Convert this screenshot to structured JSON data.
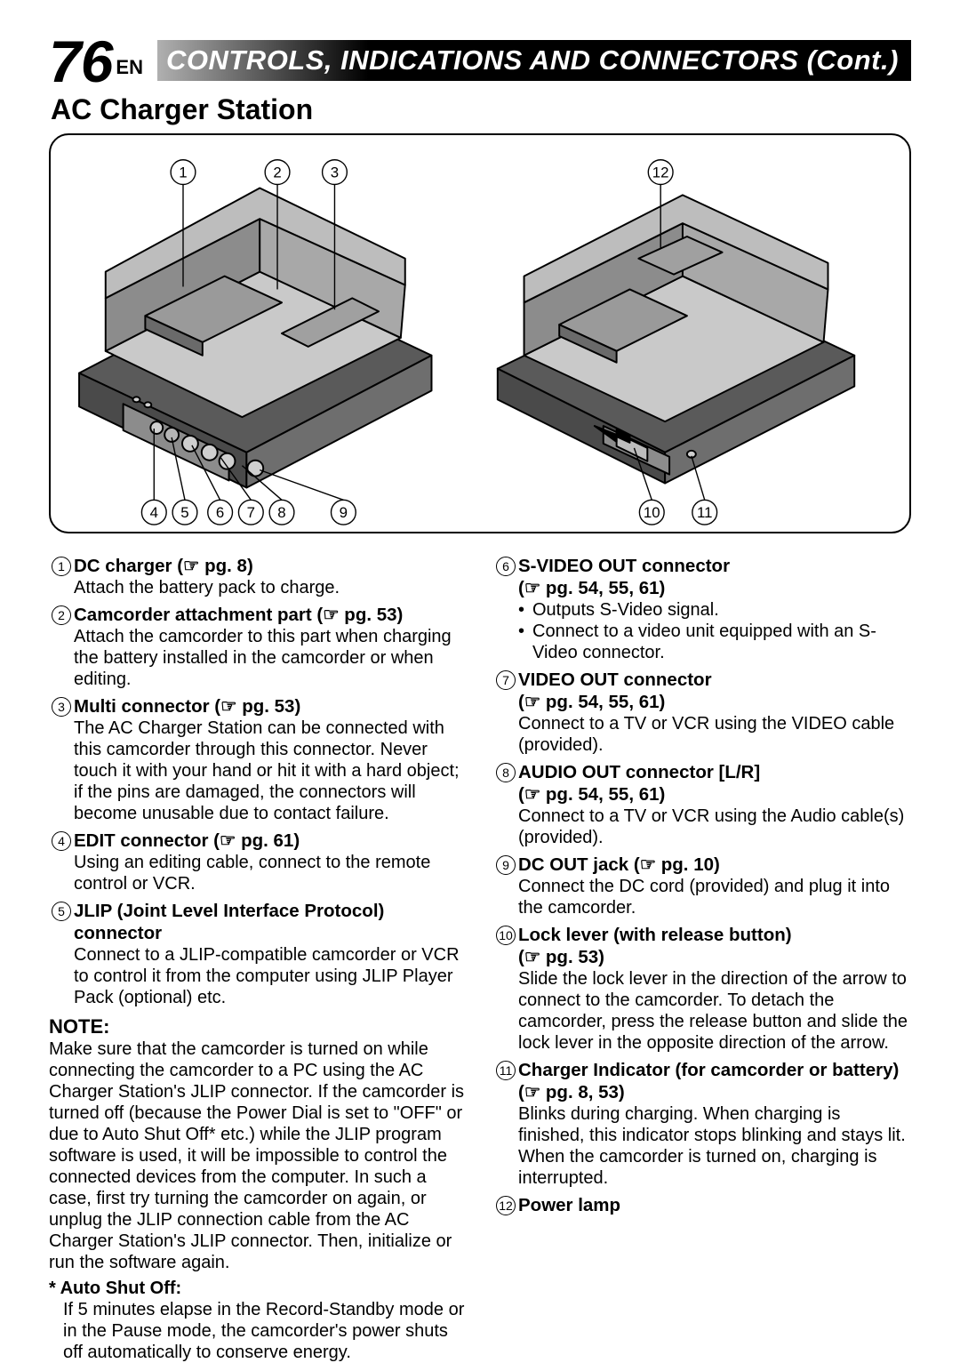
{
  "page_number": "76",
  "lang": "EN",
  "banner": "CONTROLS, INDICATIONS AND CONNECTORS (Cont.)",
  "section_title": "AC Charger Station",
  "callouts": {
    "top_left": [
      "1",
      "2",
      "3"
    ],
    "bottom_left": [
      "4",
      "5",
      "6",
      "7",
      "8",
      "9"
    ],
    "top_right": [
      "12"
    ],
    "bottom_right": [
      "10",
      "11"
    ]
  },
  "left_items": [
    {
      "n": "1",
      "title": "DC charger (☞ pg. 8)",
      "desc": "Attach the battery pack to charge."
    },
    {
      "n": "2",
      "title": "Camcorder attachment part (☞ pg. 53)",
      "desc": "Attach the camcorder to this part when charging the battery installed in the camcorder or when editing."
    },
    {
      "n": "3",
      "title": "Multi connector (☞ pg. 53)",
      "desc": "The AC Charger Station can be connected with this camcorder through this connector. Never touch it with your hand or hit it with a hard object; if the pins are damaged, the connectors will become unusable due to contact failure."
    },
    {
      "n": "4",
      "title": "EDIT connector (☞ pg. 61)",
      "desc": "Using an editing cable, connect to the remote control or VCR."
    },
    {
      "n": "5",
      "title": "JLIP (Joint Level Interface Protocol) connector",
      "desc": "Connect to a JLIP-compatible camcorder or VCR to control it from the computer using JLIP Player Pack (optional) etc."
    }
  ],
  "note": {
    "head": "NOTE:",
    "body": "Make sure that the camcorder is turned on while connecting the camcorder to a PC using the AC Charger Station's JLIP connector. If the camcorder is turned off (because the Power Dial is set to \"OFF\" or due to Auto Shut Off* etc.) while the JLIP program software is used, it will be impossible to control the connected devices from the computer. In such a case, first try turning the camcorder on again, or unplug the JLIP connection cable from the AC Charger Station's JLIP connector. Then, initialize or run the software again.",
    "sub_head": "* Auto Shut Off:",
    "sub_body": "If 5 minutes elapse in the Record-Standby mode or in the Pause mode, the camcorder's power shuts off automatically to conserve energy."
  },
  "right_items": [
    {
      "n": "6",
      "title": "S-VIDEO OUT connector",
      "title2": "(☞ pg. 54, 55, 61)",
      "bullets": [
        "Outputs S-Video signal.",
        "Connect to a video unit equipped with an S-Video connector."
      ]
    },
    {
      "n": "7",
      "title": "VIDEO OUT connector",
      "title2": "(☞ pg. 54, 55, 61)",
      "desc": "Connect to a TV or VCR using the VIDEO cable (provided)."
    },
    {
      "n": "8",
      "title": "AUDIO OUT connector [L/R]",
      "title2": "(☞ pg. 54, 55, 61)",
      "desc": "Connect to a TV or VCR using the Audio cable(s) (provided)."
    },
    {
      "n": "9",
      "title": "DC OUT jack (☞ pg. 10)",
      "desc": "Connect the DC cord (provided) and plug it into the camcorder."
    },
    {
      "n": "10",
      "title": "Lock lever (with release button)",
      "title2": "(☞ pg. 53)",
      "desc": "Slide the lock lever in the direction of the arrow to connect to the camcorder. To detach the camcorder, press the release button and slide the lock lever in the opposite direction of the arrow."
    },
    {
      "n": "11",
      "title": "Charger Indicator (for camcorder or battery) (☞ pg. 8, 53)",
      "desc": "Blinks during charging. When charging is finished, this indicator stops blinking and stays lit. When the camcorder is turned on, charging is interrupted."
    },
    {
      "n": "12",
      "title": "Power lamp"
    }
  ],
  "style": {
    "accent_gradient_from": "#b0b0b0",
    "accent_gradient_to": "#000000",
    "device_fill": "#8c8c8c",
    "device_fill_light": "#bdbdbd",
    "device_fill_dark": "#5a5a5a",
    "device_top": "#c9c9c9",
    "device_stroke": "#000000"
  }
}
